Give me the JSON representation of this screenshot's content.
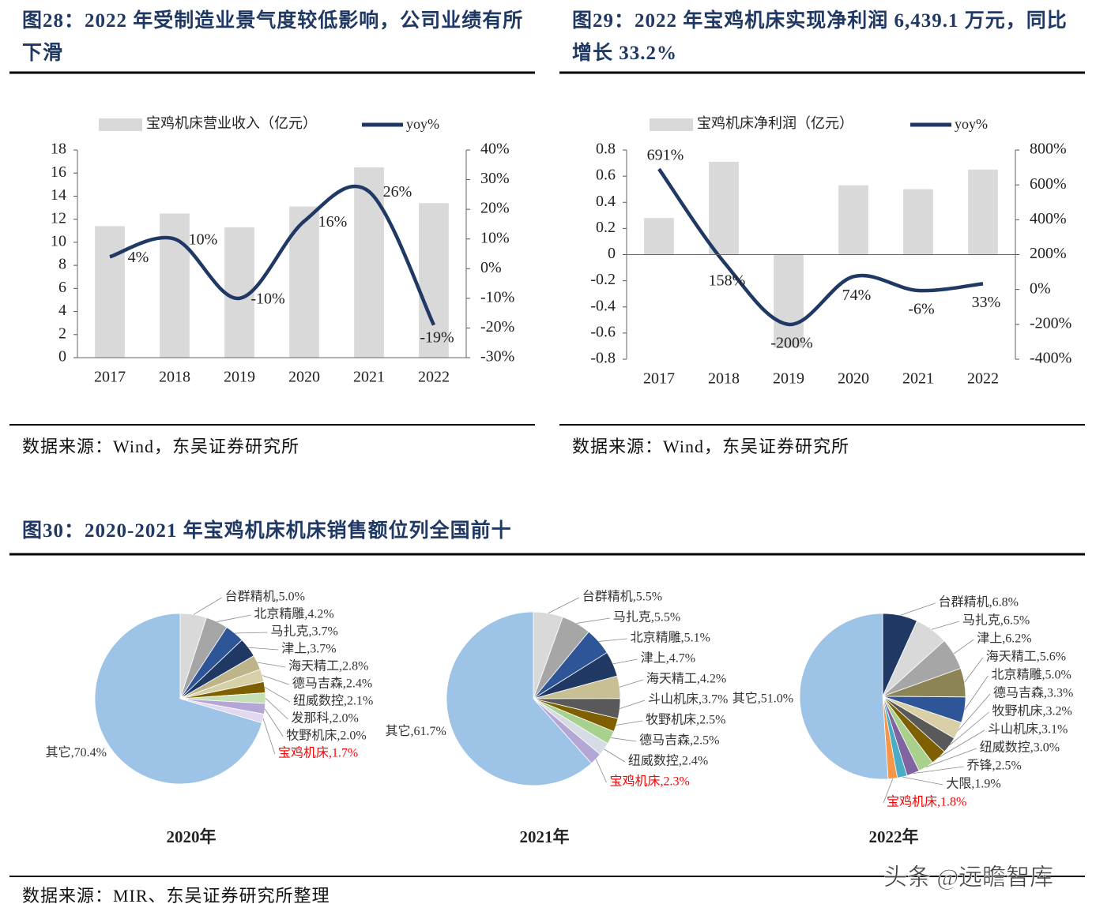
{
  "chart_data": [
    {
      "type": "combo",
      "title": "图28：2022 年受制造业景气度较低影响，公司业绩有所下滑",
      "source": "数据来源：Wind，东吴证券研究所",
      "categories": [
        "2017",
        "2018",
        "2019",
        "2020",
        "2021",
        "2022"
      ],
      "series": [
        {
          "name": "宝鸡机床营业收入（亿元）",
          "type": "bar",
          "color": "#d9d9d9",
          "values": [
            11.4,
            12.5,
            11.3,
            13.1,
            16.5,
            13.4
          ]
        },
        {
          "name": "yoy%",
          "type": "line",
          "axis": "y2",
          "color": "#1f3864",
          "values": [
            4,
            10,
            -10,
            16,
            26,
            -19
          ],
          "value_labels": [
            "4%",
            "10%",
            "-10%",
            "16%",
            "26%",
            "-19%"
          ]
        }
      ],
      "ylim": [
        0,
        18
      ],
      "yticks": [
        0,
        2,
        4,
        6,
        8,
        10,
        12,
        14,
        16,
        18
      ],
      "y2lim": [
        -30,
        40
      ],
      "y2ticks": [
        {
          "value": -30,
          "label": "-30%"
        },
        {
          "value": -20,
          "label": "-20%"
        },
        {
          "value": -10,
          "label": "-10%"
        },
        {
          "value": 0,
          "label": "0%"
        },
        {
          "value": 10,
          "label": "10%"
        },
        {
          "value": 20,
          "label": "20%"
        },
        {
          "value": 30,
          "label": "30%"
        },
        {
          "value": 40,
          "label": "40%"
        }
      ]
    },
    {
      "type": "combo",
      "title": "图29：2022 年宝鸡机床实现净利润 6,439.1 万元，同比增长 33.2%",
      "source": "数据来源：Wind，东吴证券研究所",
      "categories": [
        "2017",
        "2018",
        "2019",
        "2020",
        "2021",
        "2022"
      ],
      "series": [
        {
          "name": "宝鸡机床净利润（亿元）",
          "type": "bar",
          "color": "#d9d9d9",
          "values": [
            0.28,
            0.71,
            -0.71,
            0.53,
            0.5,
            0.65
          ]
        },
        {
          "name": "yoy%",
          "type": "line",
          "axis": "y2",
          "color": "#1f3864",
          "values": [
            691,
            158,
            -200,
            74,
            -6,
            33
          ],
          "value_labels": [
            "691%",
            "158%",
            "-200%",
            "74%",
            "-6%",
            "33%"
          ]
        }
      ],
      "ylim": [
        -0.8,
        0.8
      ],
      "yticks": [
        -0.8,
        -0.6,
        -0.4,
        -0.2,
        0,
        0.2,
        0.4,
        0.6,
        0.8
      ],
      "y2lim": [
        -400,
        800
      ],
      "y2ticks": [
        {
          "value": -400,
          "label": "-400%"
        },
        {
          "value": -200,
          "label": "-200%"
        },
        {
          "value": 0,
          "label": "0%"
        },
        {
          "value": 200,
          "label": "200%"
        },
        {
          "value": 400,
          "label": "400%"
        },
        {
          "value": 600,
          "label": "600%"
        },
        {
          "value": 800,
          "label": "800%"
        }
      ]
    },
    {
      "type": "pie",
      "title": "2020年",
      "values": [
        5.0,
        4.2,
        3.7,
        3.7,
        2.8,
        2.4,
        2.1,
        2.0,
        2.0,
        1.7,
        70.4
      ],
      "value_labels": [
        "台群精机,5.0%",
        "北京精雕,4.2%",
        "马扎克,3.7%",
        "津上,3.7%",
        "海天精工,2.8%",
        "德马吉森,2.4%",
        "纽威数控,2.1%",
        "发那科,2.0%",
        "牧野机床,2.0%",
        "宝鸡机床,1.7%",
        "其它,70.4%"
      ],
      "colors": [
        "#d9d9d9",
        "#a5a5a5",
        "#2e5597",
        "#1f3864",
        "#bfb38a",
        "#d6cfa8",
        "#7f6000",
        "#c5e0b4",
        "#b4a7d6",
        "#e2d8f0",
        "#9dc3e6"
      ],
      "highlight_index": 9,
      "highlight_color": "#ff0000"
    },
    {
      "type": "pie",
      "title": "2021年",
      "values": [
        5.5,
        5.5,
        5.1,
        4.7,
        4.2,
        3.7,
        2.5,
        2.5,
        2.4,
        2.3,
        61.7
      ],
      "value_labels": [
        "台群精机,5.5%",
        "马扎克,5.5%",
        "北京精雕,5.1%",
        "津上,4.7%",
        "海天精工,4.2%",
        "斗山机床,3.7%",
        "牧野机床,2.5%",
        "德马吉森,2.5%",
        "纽威数控,2.4%",
        "宝鸡机床,2.3%",
        "其它,61.7%"
      ],
      "colors": [
        "#d9d9d9",
        "#a6a6a6",
        "#2e5597",
        "#1f3864",
        "#c9bf95",
        "#595959",
        "#7f6000",
        "#a9d18e",
        "#d6dce5",
        "#b4a7d6",
        "#9dc3e6"
      ],
      "highlight_index": 9,
      "highlight_color": "#ff0000"
    },
    {
      "type": "pie",
      "title": "2022年",
      "values": [
        6.8,
        6.5,
        6.2,
        5.6,
        5.0,
        3.3,
        3.2,
        3.1,
        3.0,
        2.5,
        1.9,
        1.8,
        51.0
      ],
      "value_labels": [
        "台群精机,6.8%",
        "马扎克,6.5%",
        "津上,6.2%",
        "海天精工,5.6%",
        "北京精雕,5.0%",
        "德马吉森,3.3%",
        "牧野机床,3.2%",
        "斗山机床,3.1%",
        "纽威数控,3.0%",
        "乔锋,2.5%",
        "大限,1.9%",
        "宝鸡机床,1.8%",
        "其它,51.0%"
      ],
      "colors": [
        "#1f3864",
        "#d9d9d9",
        "#a6a6a6",
        "#8c8455",
        "#2e5597",
        "#d9cfa6",
        "#595959",
        "#7f6000",
        "#a9d18e",
        "#8064a2",
        "#4bacc6",
        "#f79646",
        "#9dc3e6"
      ],
      "highlight_index": 11,
      "highlight_color": "#ff0000"
    }
  ],
  "figure30": {
    "title": "图30：2020-2021 年宝鸡机床机床销售额位列全国前十",
    "source": "数据来源：MIR、东吴证券研究所整理"
  },
  "watermark": "头条 @远瞻智库"
}
